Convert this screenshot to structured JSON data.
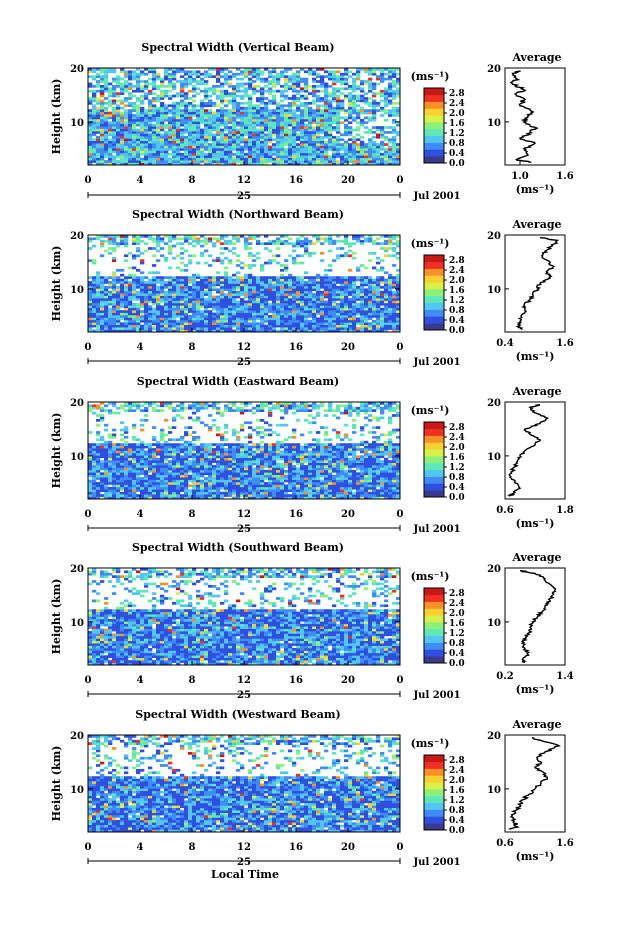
{
  "chart_data": {
    "type": "heatmap",
    "xlabel": "Local Time",
    "date_label": "Jul 2001",
    "day_label": "25",
    "x_ticks": [
      "0",
      "4",
      "8",
      "12",
      "16",
      "20",
      "0"
    ],
    "xlim": [
      0,
      24
    ],
    "ylabel": "Height (km)",
    "y_ticks": [
      "10",
      "20"
    ],
    "ylim": [
      2,
      20
    ],
    "colorbar": {
      "unit": "(ms⁻¹)",
      "ticks": [
        "2.8",
        "2.4",
        "2.0",
        "1.6",
        "1.2",
        "0.8",
        "0.4",
        "0.0"
      ],
      "range": [
        0.0,
        3.0
      ],
      "colors": [
        "#3a3a8c",
        "#2e4fe0",
        "#3f8cf5",
        "#52c5f0",
        "#5ee8b8",
        "#8cf07a",
        "#d8f048",
        "#f8d030",
        "#f89028",
        "#f03020",
        "#c81818"
      ]
    },
    "average_title": "Average",
    "average_xlabel": "(ms⁻¹)",
    "panels": [
      {
        "title": "Spectral Width (Vertical Beam)",
        "avg_xticks": [
          "1.0",
          "1.6"
        ],
        "avg_xlim": [
          0.8,
          1.6
        ],
        "avg_profile": {
          "height": [
            2.5,
            3,
            4,
            5,
            6,
            7,
            8,
            9,
            10,
            11,
            12,
            13,
            14,
            15,
            16,
            17,
            18,
            19,
            19.5
          ],
          "value": [
            1.15,
            0.95,
            1.1,
            1.05,
            1.2,
            1.0,
            1.15,
            1.2,
            1.05,
            1.1,
            1.15,
            1.0,
            1.05,
            0.95,
            1.05,
            0.9,
            0.95,
            0.9,
            1.0
          ]
        }
      },
      {
        "title": "Spectral Width (Northward Beam)",
        "avg_xticks": [
          "0.4",
          "1.6"
        ],
        "avg_xlim": [
          0.4,
          1.6
        ],
        "avg_profile": {
          "height": [
            2.5,
            3,
            4,
            5,
            6,
            7,
            8,
            9,
            10,
            11,
            12,
            13,
            14,
            15,
            16,
            17,
            18,
            19,
            19.5
          ],
          "value": [
            0.75,
            0.65,
            0.7,
            0.72,
            0.8,
            0.78,
            0.9,
            0.95,
            1.05,
            1.1,
            1.3,
            1.25,
            1.35,
            1.3,
            1.15,
            1.2,
            1.35,
            1.45,
            1.1
          ]
        }
      },
      {
        "title": "Spectral Width (Eastward Beam)",
        "avg_xticks": [
          "0.6",
          "1.8"
        ],
        "avg_xlim": [
          0.6,
          1.8
        ],
        "avg_profile": {
          "height": [
            2.5,
            3,
            4,
            5,
            6,
            7,
            8,
            9,
            10,
            11,
            12,
            13,
            14,
            15,
            16,
            17,
            18,
            19,
            19.5
          ],
          "value": [
            0.7,
            0.75,
            0.9,
            0.8,
            0.7,
            0.72,
            0.8,
            0.85,
            0.9,
            1.0,
            1.2,
            1.3,
            1.1,
            1.0,
            1.3,
            1.45,
            1.2,
            1.1,
            1.3
          ]
        }
      },
      {
        "title": "Spectral Width (Southward Beam)",
        "avg_xticks": [
          "0.2",
          "1.4"
        ],
        "avg_xlim": [
          0.2,
          1.4
        ],
        "avg_profile": {
          "height": [
            2.5,
            3,
            4,
            5,
            6,
            7,
            8,
            9,
            10,
            11,
            12,
            13,
            14,
            15,
            16,
            17,
            18,
            19,
            19.5
          ],
          "value": [
            0.6,
            0.55,
            0.65,
            0.6,
            0.55,
            0.62,
            0.68,
            0.7,
            0.75,
            0.85,
            0.95,
            1.0,
            1.1,
            1.15,
            1.2,
            1.1,
            1.0,
            0.8,
            0.5
          ]
        }
      },
      {
        "title": "Spectral Width (Westward Beam)",
        "avg_xticks": [
          "0.6",
          "1.6"
        ],
        "avg_xlim": [
          0.6,
          1.6
        ],
        "avg_profile": {
          "height": [
            2.5,
            3,
            4,
            5,
            6,
            7,
            8,
            9,
            10,
            11,
            12,
            13,
            14,
            15,
            16,
            17,
            18,
            19,
            19.5
          ],
          "value": [
            0.7,
            0.8,
            0.75,
            0.72,
            0.78,
            0.85,
            0.9,
            1.0,
            1.1,
            1.2,
            1.3,
            1.25,
            1.1,
            1.2,
            1.15,
            1.3,
            1.5,
            1.2,
            1.05
          ]
        }
      }
    ]
  }
}
